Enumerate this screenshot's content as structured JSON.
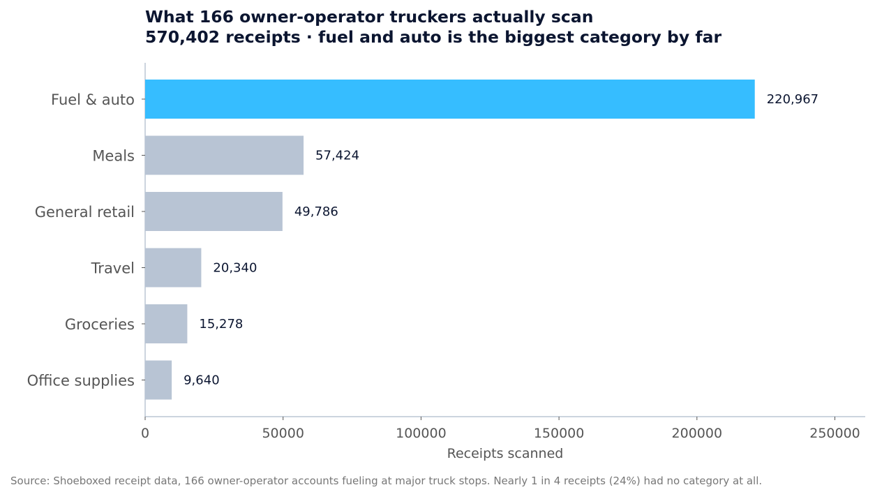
{
  "title_line1": "What 166 owner-operator truckers actually scan",
  "title_line2": "570,402 receipts · fuel and auto is the biggest category by far",
  "source": "Source: Shoeboxed receipt data, 166 owner-operator accounts fueling at major truck stops. Nearly 1 in 4 receipts (24%) had no category at all.",
  "colors": {
    "highlight": "#36bdff",
    "base": "#b8c4d4",
    "axis": "#bcc6d4",
    "label": "#555555",
    "value": "#0b1530"
  },
  "chart_data": {
    "type": "bar",
    "orientation": "horizontal",
    "categories": [
      "Fuel & auto",
      "Meals",
      "General retail",
      "Travel",
      "Groceries",
      "Office supplies"
    ],
    "values": [
      220967,
      57424,
      49786,
      20340,
      15278,
      9640
    ],
    "value_labels": [
      "220,967",
      "57,424",
      "49,786",
      "20,340",
      "15,278",
      "9,640"
    ],
    "highlight": "Fuel & auto",
    "xlabel": "Receipts scanned",
    "xticks": [
      0,
      50000,
      100000,
      150000,
      200000,
      250000
    ],
    "xlim": [
      0,
      261000
    ],
    "grid": false
  }
}
